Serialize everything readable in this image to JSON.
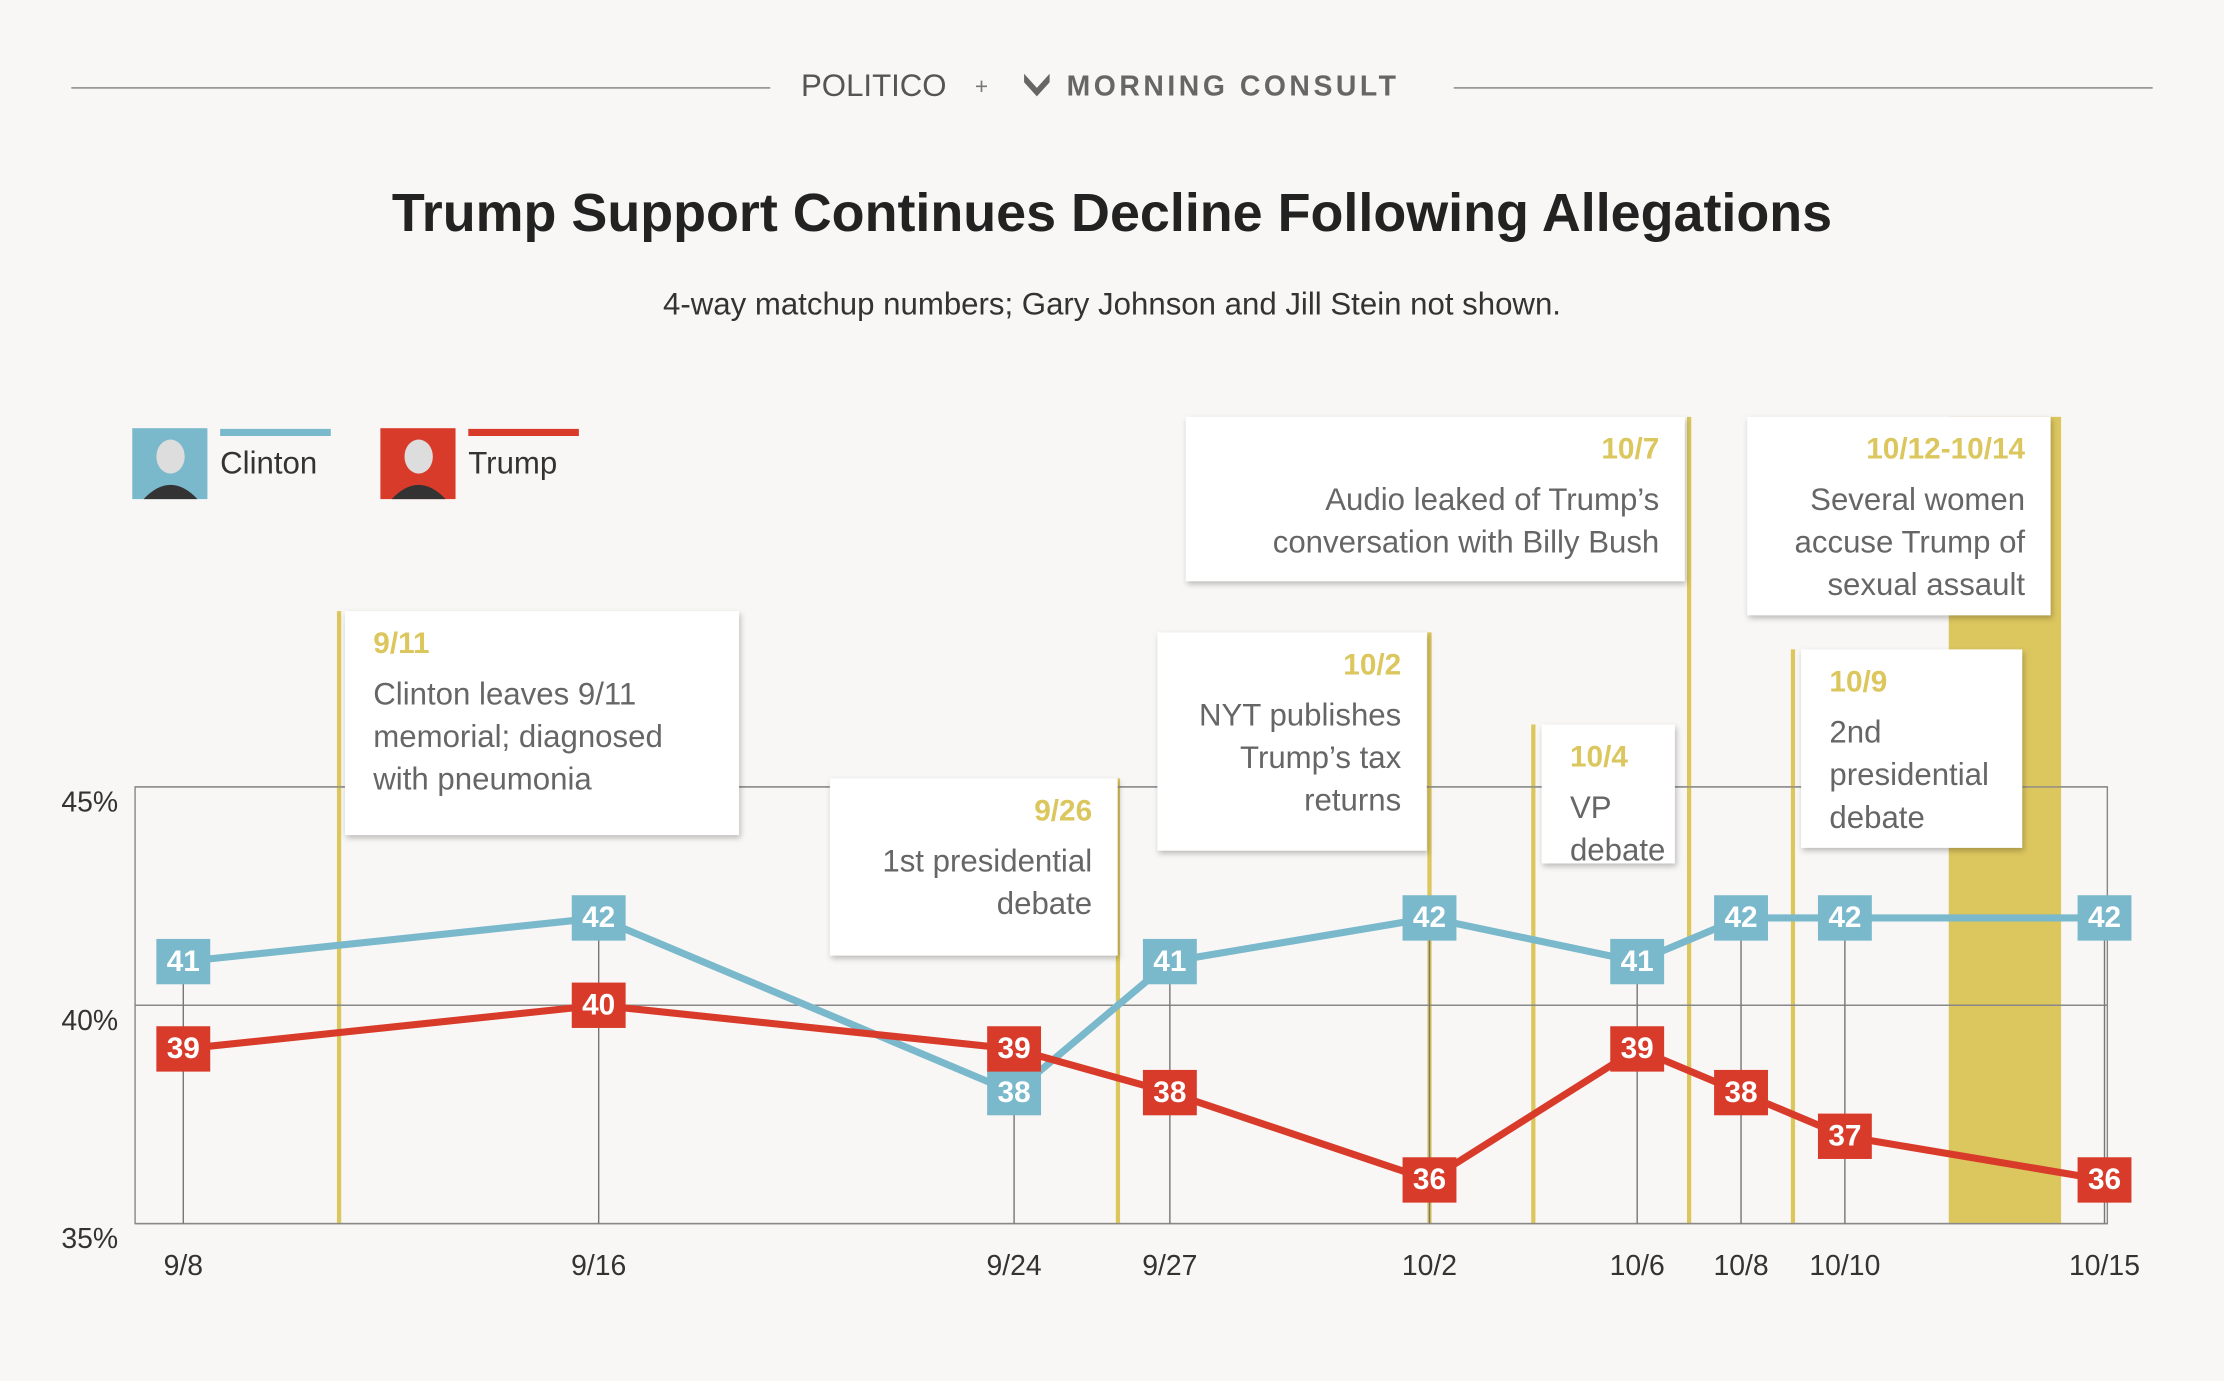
{
  "chart_data": {
    "type": "line",
    "header_left": "POLITICO",
    "header_joiner": "+",
    "header_right": "MORNING CONSULT",
    "title": "Trump Support Continues Decline Following Allegations",
    "subtitle": "4-way matchup numbers;  Gary Johnson and Jill Stein not shown.",
    "x": [
      "9/8",
      "9/16",
      "9/24",
      "9/27",
      "10/2",
      "10/6",
      "10/8",
      "10/10",
      "10/15"
    ],
    "series": [
      {
        "name": "Clinton",
        "color": "#7ab8cb",
        "values": [
          41,
          42,
          38,
          41,
          42,
          41,
          42,
          42,
          42
        ]
      },
      {
        "name": "Trump",
        "color": "#d93b2b",
        "values": [
          39,
          40,
          39,
          38,
          36,
          39,
          38,
          37,
          36
        ]
      }
    ],
    "ylim": [
      35,
      45
    ],
    "yticks": [
      {
        "value": 35,
        "label": "35%"
      },
      {
        "value": 40,
        "label": "40%"
      },
      {
        "value": 45,
        "label": "45%"
      }
    ],
    "grid": true,
    "annotation_color": "#dcc65e",
    "annotations": [
      {
        "date": "9/11",
        "lines": [
          "Clinton leaves 9/11",
          "memorial; diagnosed",
          "with pneumonia"
        ]
      },
      {
        "date": "9/26",
        "lines": [
          "1st presidential",
          "debate"
        ]
      },
      {
        "date": "10/2",
        "lines": [
          "NYT publishes",
          "Trump’s tax",
          "returns"
        ]
      },
      {
        "date": "10/4",
        "lines": [
          "VP",
          "debate"
        ]
      },
      {
        "date": "10/7",
        "lines": [
          "Audio leaked of Trump’s",
          "conversation with Billy Bush"
        ]
      },
      {
        "date": "10/9",
        "lines": [
          "2nd",
          "presidential",
          "debate"
        ]
      },
      {
        "date": "10/12-10/14",
        "lines": [
          "Several women",
          "accuse Trump of",
          "sexual assault"
        ]
      }
    ]
  }
}
